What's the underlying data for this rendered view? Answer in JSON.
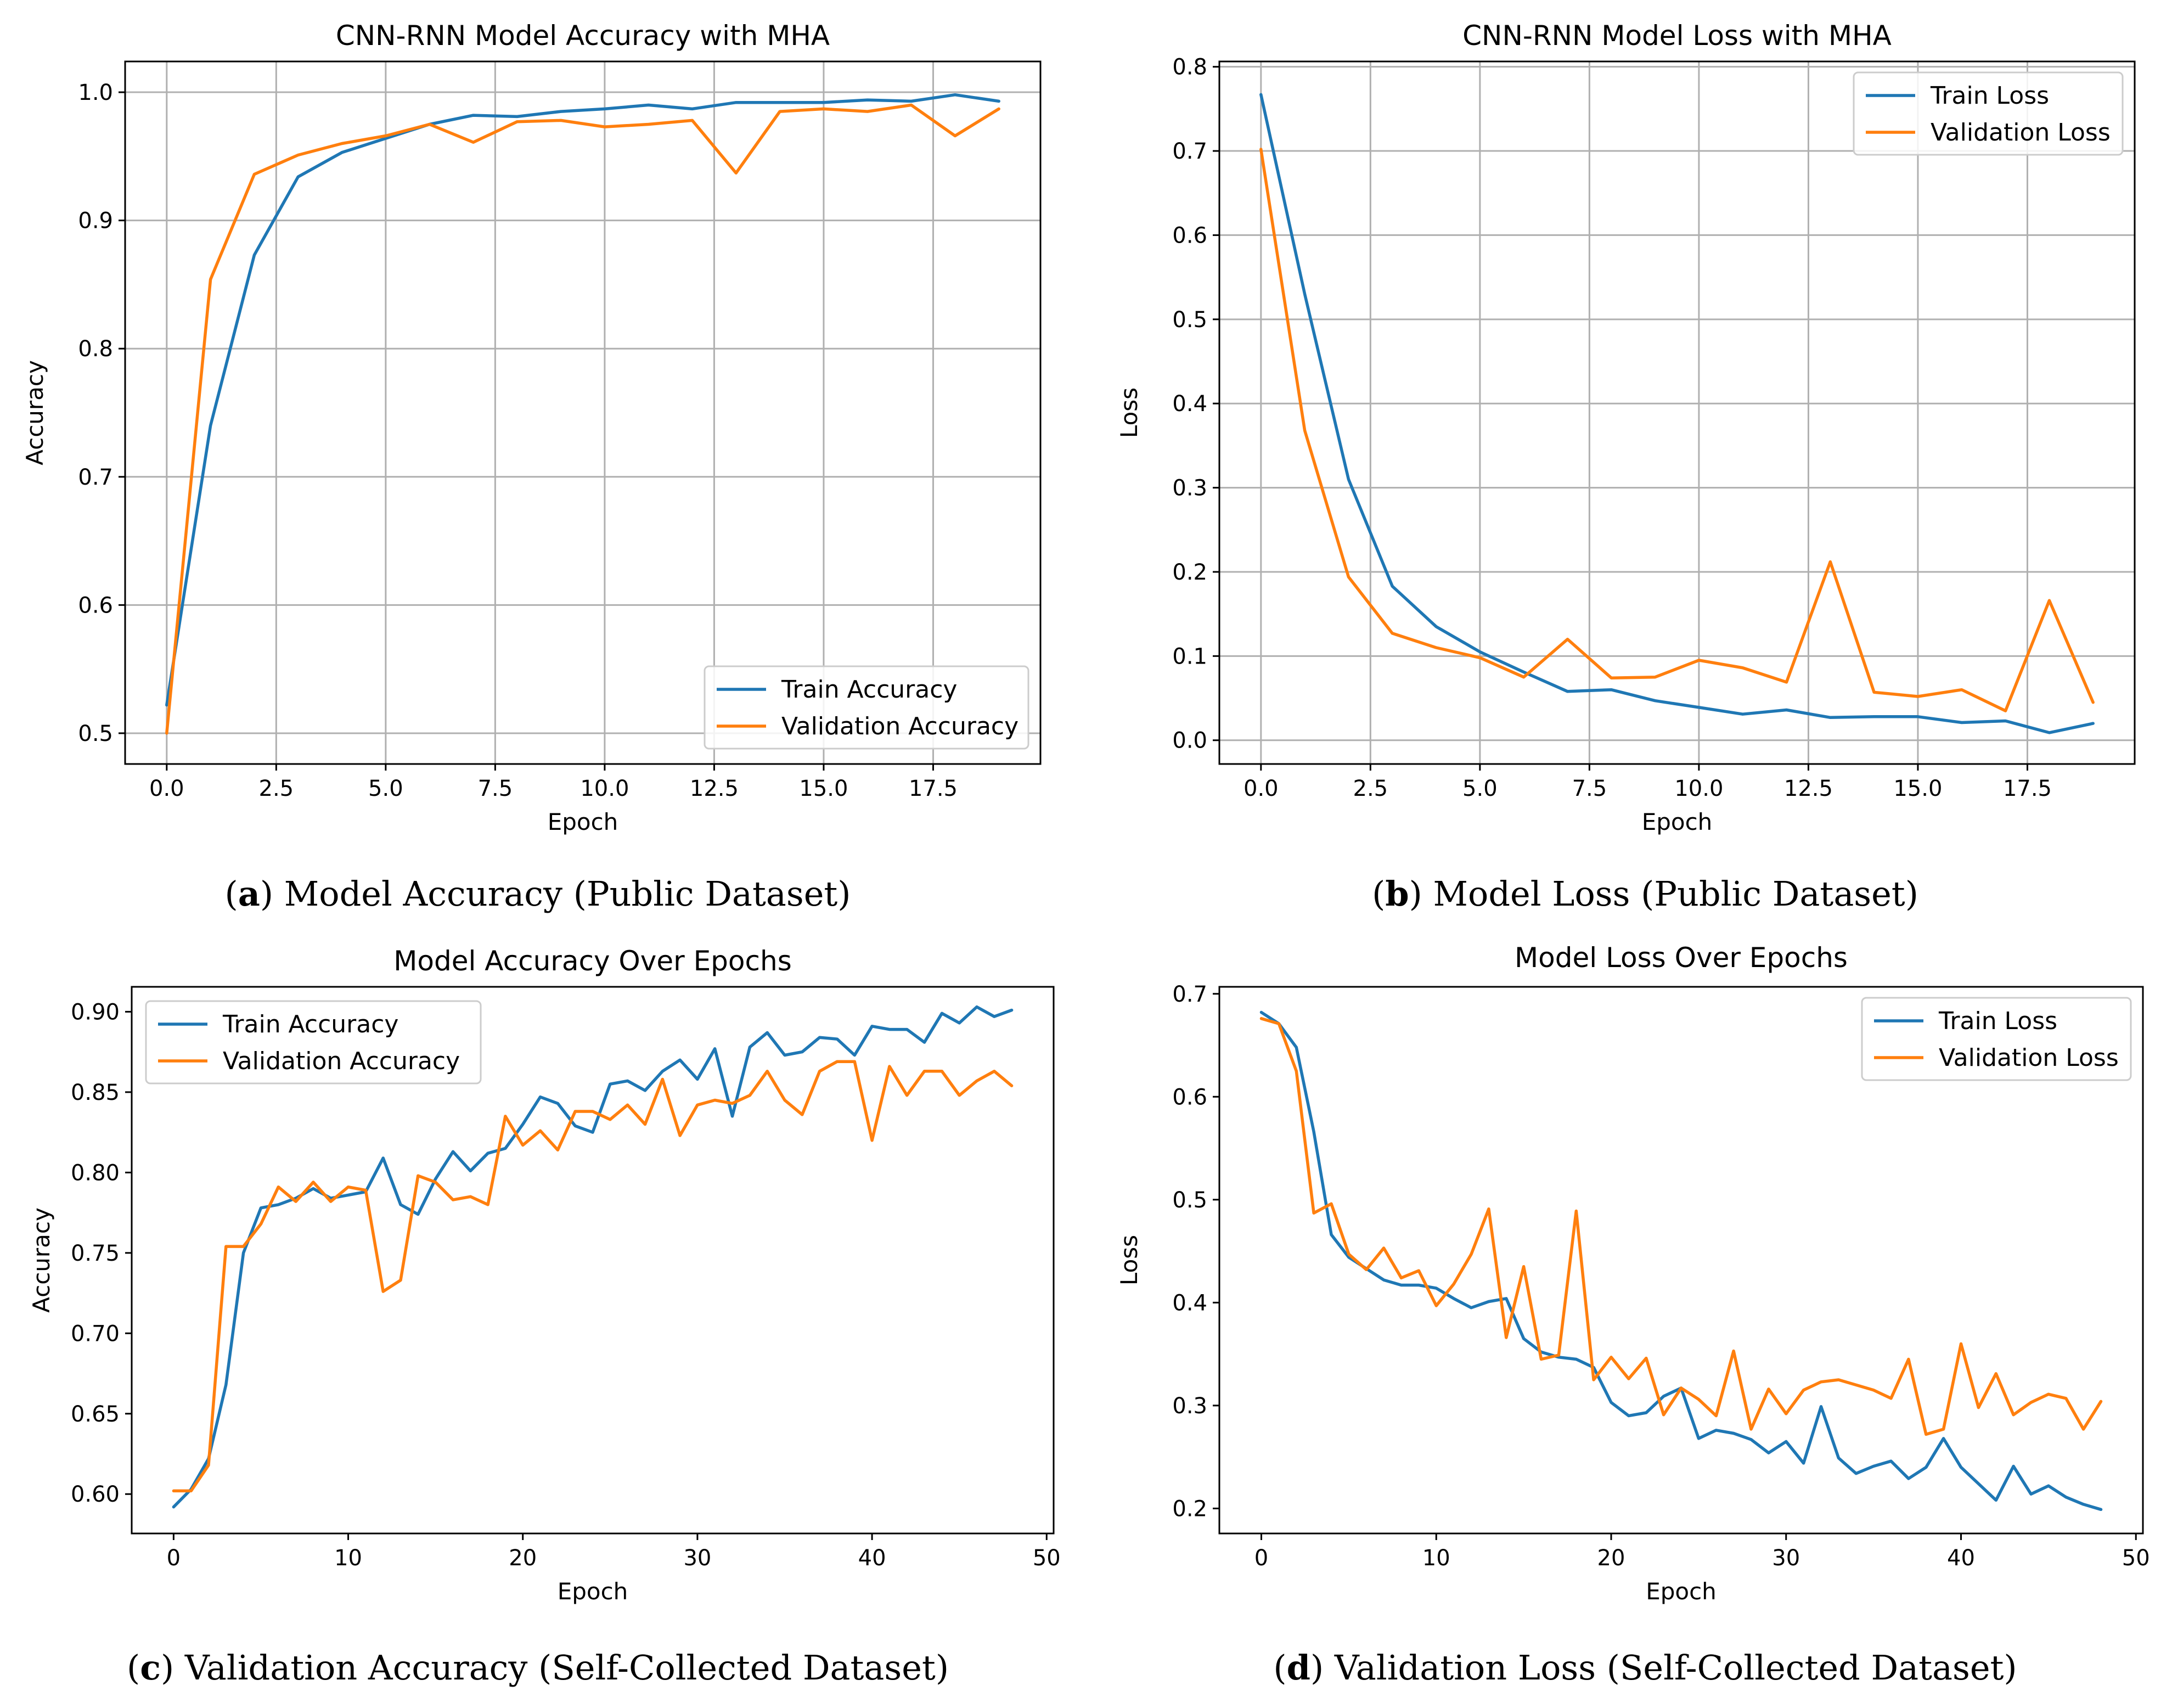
{
  "chart_data": [
    {
      "type": "line",
      "title": "CNN-RNN Model Accuracy with MHA",
      "xlabel": "Epoch",
      "ylabel": "Accuracy",
      "xlim": [
        -0.95,
        19.95
      ],
      "ylim": [
        0.476,
        1.024
      ],
      "xticks": [
        0,
        2.5,
        5,
        7.5,
        10,
        12.5,
        15,
        17.5
      ],
      "xtick_labels": [
        "0.0",
        "2.5",
        "5.0",
        "7.5",
        "10.0",
        "12.5",
        "15.0",
        "17.5"
      ],
      "yticks": [
        0.5,
        0.6,
        0.7,
        0.8,
        0.9,
        1.0
      ],
      "ytick_labels": [
        "0.5",
        "0.6",
        "0.7",
        "0.8",
        "0.9",
        "1.0"
      ],
      "grid": true,
      "legend_position": "bottom-right",
      "x": [
        0,
        1,
        2,
        3,
        4,
        5,
        6,
        7,
        8,
        9,
        10,
        11,
        12,
        13,
        14,
        15,
        16,
        17,
        18,
        19
      ],
      "series": [
        {
          "name": "Train Accuracy",
          "color": "#1f77b4",
          "values": [
            0.522,
            0.74,
            0.873,
            0.934,
            0.953,
            0.964,
            0.975,
            0.982,
            0.981,
            0.985,
            0.987,
            0.99,
            0.987,
            0.992,
            0.992,
            0.992,
            0.994,
            0.993,
            0.998,
            0.993
          ]
        },
        {
          "name": "Validation Accuracy",
          "color": "#ff7f0e",
          "values": [
            0.5,
            0.854,
            0.936,
            0.951,
            0.96,
            0.966,
            0.975,
            0.961,
            0.977,
            0.978,
            0.973,
            0.975,
            0.978,
            0.937,
            0.985,
            0.987,
            0.985,
            0.99,
            0.966,
            0.987
          ]
        }
      ],
      "caption": {
        "label": "a",
        "text": ") Model Accuracy (Public Dataset)",
        "prefix": "("
      }
    },
    {
      "type": "line",
      "title": "CNN-RNN Model Loss with MHA",
      "xlabel": "Epoch",
      "ylabel": "Loss",
      "xlim": [
        -0.95,
        19.95
      ],
      "ylim": [
        -0.0282,
        0.8063
      ],
      "xticks": [
        0,
        2.5,
        5,
        7.5,
        10,
        12.5,
        15,
        17.5
      ],
      "xtick_labels": [
        "0.0",
        "2.5",
        "5.0",
        "7.5",
        "10.0",
        "12.5",
        "15.0",
        "17.5"
      ],
      "yticks": [
        0,
        0.1,
        0.2,
        0.3,
        0.4,
        0.5,
        0.6,
        0.7,
        0.8
      ],
      "ytick_labels": [
        "0.0",
        "0.1",
        "0.2",
        "0.3",
        "0.4",
        "0.5",
        "0.6",
        "0.7",
        "0.8"
      ],
      "grid": true,
      "legend_position": "top-right",
      "x": [
        0,
        1,
        2,
        3,
        4,
        5,
        6,
        7,
        8,
        9,
        10,
        11,
        12,
        13,
        14,
        15,
        16,
        17,
        18,
        19
      ],
      "series": [
        {
          "name": "Train Loss",
          "color": "#1f77b4",
          "values": [
            0.767,
            0.53,
            0.31,
            0.183,
            0.135,
            0.105,
            0.081,
            0.058,
            0.06,
            0.047,
            0.039,
            0.031,
            0.036,
            0.027,
            0.028,
            0.028,
            0.021,
            0.023,
            0.009,
            0.02
          ]
        },
        {
          "name": "Validation Loss",
          "color": "#ff7f0e",
          "values": [
            0.702,
            0.368,
            0.194,
            0.127,
            0.11,
            0.098,
            0.075,
            0.12,
            0.074,
            0.075,
            0.095,
            0.086,
            0.069,
            0.212,
            0.057,
            0.052,
            0.06,
            0.035,
            0.166,
            0.045
          ]
        }
      ],
      "caption": {
        "label": "b",
        "text": ") Model Loss (Public Dataset)",
        "prefix": "("
      }
    },
    {
      "type": "line",
      "title": "Model Accuracy Over Epochs",
      "xlabel": "Epoch",
      "ylabel": "Accuracy",
      "xlim": [
        -2.4,
        50.4
      ],
      "ylim": [
        0.5755,
        0.9155
      ],
      "xticks": [
        0,
        10,
        20,
        30,
        40,
        50
      ],
      "xtick_labels": [
        "0",
        "10",
        "20",
        "30",
        "40",
        "50"
      ],
      "yticks": [
        0.6,
        0.65,
        0.7,
        0.75,
        0.8,
        0.85,
        0.9
      ],
      "ytick_labels": [
        "0.60",
        "0.65",
        "0.70",
        "0.75",
        "0.80",
        "0.85",
        "0.90"
      ],
      "grid": false,
      "legend_position": "top-left",
      "x": [
        0,
        1,
        2,
        3,
        4,
        5,
        6,
        7,
        8,
        9,
        10,
        11,
        12,
        13,
        14,
        15,
        16,
        17,
        18,
        19,
        20,
        21,
        22,
        23,
        24,
        25,
        26,
        27,
        28,
        29,
        30,
        31,
        32,
        33,
        34,
        35,
        36,
        37,
        38,
        39,
        40,
        41,
        42,
        43,
        44,
        45,
        46,
        47,
        48
      ],
      "series": [
        {
          "name": "Train Accuracy",
          "color": "#1f77b4",
          "values": [
            0.592,
            0.603,
            0.622,
            0.668,
            0.75,
            0.778,
            0.78,
            0.784,
            0.79,
            0.784,
            0.786,
            0.788,
            0.809,
            0.78,
            0.774,
            0.796,
            0.813,
            0.801,
            0.812,
            0.815,
            0.83,
            0.847,
            0.843,
            0.829,
            0.825,
            0.855,
            0.857,
            0.851,
            0.863,
            0.87,
            0.858,
            0.877,
            0.835,
            0.878,
            0.887,
            0.873,
            0.875,
            0.884,
            0.883,
            0.873,
            0.891,
            0.889,
            0.889,
            0.881,
            0.899,
            0.893,
            0.903,
            0.897,
            0.901
          ]
        },
        {
          "name": "Validation Accuracy",
          "color": "#ff7f0e",
          "values": [
            0.602,
            0.602,
            0.618,
            0.754,
            0.754,
            0.768,
            0.791,
            0.782,
            0.794,
            0.782,
            0.791,
            0.789,
            0.726,
            0.733,
            0.798,
            0.794,
            0.783,
            0.785,
            0.78,
            0.835,
            0.817,
            0.826,
            0.814,
            0.838,
            0.838,
            0.833,
            0.842,
            0.83,
            0.858,
            0.823,
            0.842,
            0.845,
            0.843,
            0.848,
            0.863,
            0.845,
            0.836,
            0.863,
            0.869,
            0.869,
            0.82,
            0.866,
            0.848,
            0.863,
            0.863,
            0.848,
            0.857,
            0.863,
            0.854
          ]
        }
      ],
      "caption": {
        "label": "c",
        "text": ") Validation Accuracy (Self-Collected Dataset)",
        "prefix": "("
      }
    },
    {
      "type": "line",
      "title": "Model Loss Over Epochs",
      "xlabel": "Epoch",
      "ylabel": "Loss",
      "xlim": [
        -2.4,
        50.4
      ],
      "ylim": [
        0.1757,
        0.7068
      ],
      "xticks": [
        0,
        10,
        20,
        30,
        40,
        50
      ],
      "xtick_labels": [
        "0",
        "10",
        "20",
        "30",
        "40",
        "50"
      ],
      "yticks": [
        0.2,
        0.3,
        0.4,
        0.5,
        0.6,
        0.7
      ],
      "ytick_labels": [
        "0.2",
        "0.3",
        "0.4",
        "0.5",
        "0.6",
        "0.7"
      ],
      "grid": false,
      "legend_position": "top-right",
      "x": [
        0,
        1,
        2,
        3,
        4,
        5,
        6,
        7,
        8,
        9,
        10,
        11,
        12,
        13,
        14,
        15,
        16,
        17,
        18,
        19,
        20,
        21,
        22,
        23,
        24,
        25,
        26,
        27,
        28,
        29,
        30,
        31,
        32,
        33,
        34,
        35,
        36,
        37,
        38,
        39,
        40,
        41,
        42,
        43,
        44,
        45,
        46,
        47,
        48
      ],
      "series": [
        {
          "name": "Train Loss",
          "color": "#1f77b4",
          "values": [
            0.682,
            0.671,
            0.648,
            0.566,
            0.466,
            0.444,
            0.433,
            0.422,
            0.417,
            0.417,
            0.414,
            0.404,
            0.395,
            0.401,
            0.404,
            0.365,
            0.352,
            0.347,
            0.345,
            0.337,
            0.303,
            0.29,
            0.293,
            0.309,
            0.317,
            0.268,
            0.276,
            0.273,
            0.267,
            0.254,
            0.265,
            0.244,
            0.299,
            0.249,
            0.234,
            0.241,
            0.246,
            0.229,
            0.24,
            0.268,
            0.24,
            0.224,
            0.208,
            0.241,
            0.214,
            0.222,
            0.211,
            0.204,
            0.199
          ]
        },
        {
          "name": "Validation Loss",
          "color": "#ff7f0e",
          "values": [
            0.676,
            0.671,
            0.625,
            0.487,
            0.496,
            0.447,
            0.432,
            0.453,
            0.424,
            0.431,
            0.397,
            0.418,
            0.447,
            0.491,
            0.366,
            0.435,
            0.345,
            0.349,
            0.489,
            0.325,
            0.347,
            0.326,
            0.346,
            0.291,
            0.317,
            0.306,
            0.29,
            0.353,
            0.277,
            0.316,
            0.292,
            0.315,
            0.323,
            0.325,
            0.32,
            0.315,
            0.307,
            0.345,
            0.272,
            0.277,
            0.36,
            0.298,
            0.331,
            0.291,
            0.303,
            0.311,
            0.307,
            0.277,
            0.304
          ]
        }
      ],
      "caption": {
        "label": "d",
        "text": ") Validation Loss (Self-Collected Dataset)",
        "prefix": "("
      }
    }
  ]
}
